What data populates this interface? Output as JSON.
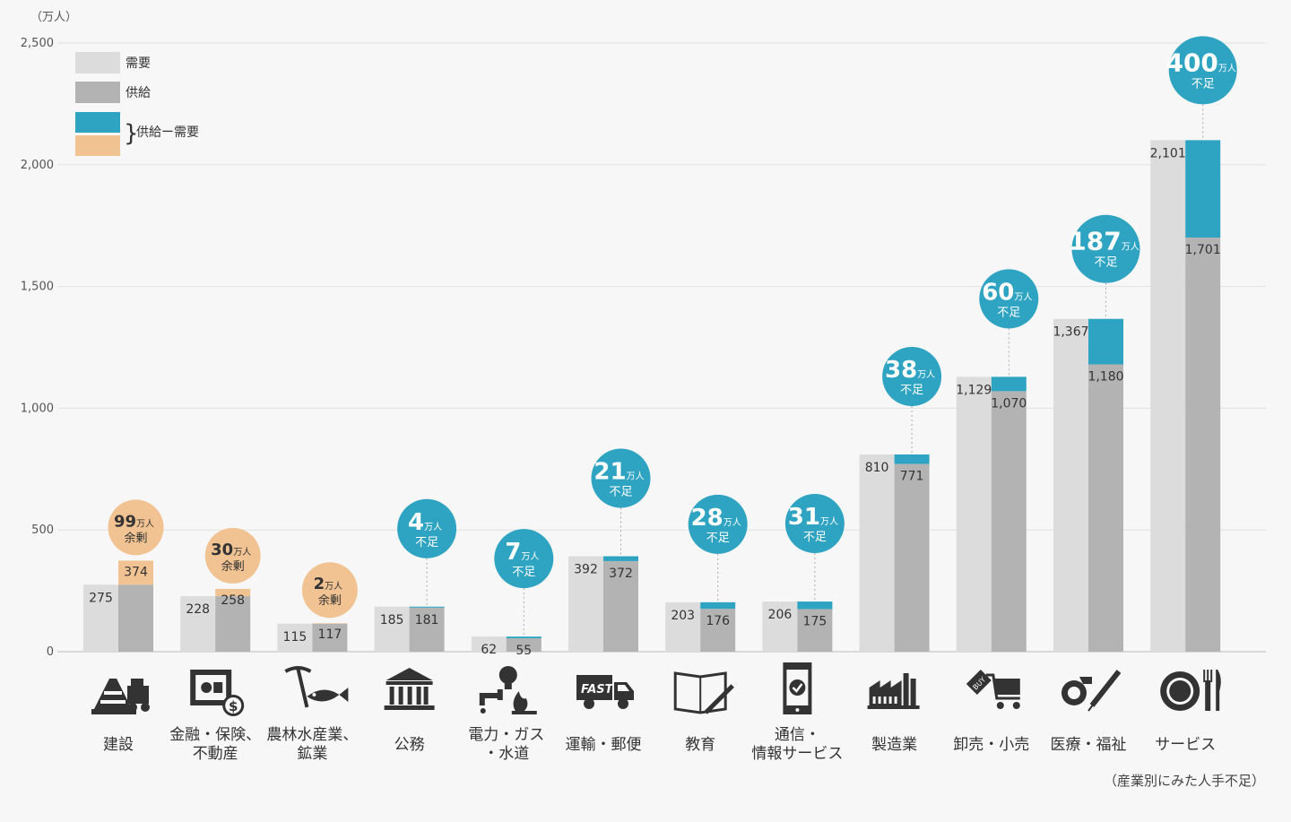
{
  "chart_data": {
    "type": "bar",
    "unit_label": "（万人）",
    "caption": "（産業別にみた人手不足）",
    "ylim": [
      0,
      2500
    ],
    "yticks": [
      0,
      500,
      1000,
      1500,
      2000,
      2500
    ],
    "ytick_labels": [
      "0",
      "500",
      "1,000",
      "1,500",
      "2,000",
      "2,500"
    ],
    "legend": {
      "demand": "需要",
      "supply": "供給",
      "diff": "供給ー需要"
    },
    "colors": {
      "demand": "#dcdcdc",
      "supply": "#b3b3b3",
      "shortage": "#2fa4c2",
      "surplus": "#f1c393"
    },
    "badge_unit": "万人",
    "badge_surplus": "余剰",
    "badge_shortage": "不足",
    "categories": [
      {
        "label": [
          "建設"
        ],
        "icon": "construction-icon",
        "demand": 275,
        "supply": 374,
        "demand_label": "275",
        "supply_label": "374",
        "diff": 99,
        "status": "surplus"
      },
      {
        "label": [
          "金融・保険、",
          "不動産"
        ],
        "icon": "safe-icon",
        "demand": 228,
        "supply": 258,
        "demand_label": "228",
        "supply_label": "258",
        "diff": 30,
        "status": "surplus"
      },
      {
        "label": [
          "農林水産業、",
          "鉱業"
        ],
        "icon": "pickaxe-fish-icon",
        "demand": 115,
        "supply": 117,
        "demand_label": "115",
        "supply_label": "117",
        "diff": 2,
        "status": "surplus"
      },
      {
        "label": [
          "公務"
        ],
        "icon": "government-building-icon",
        "demand": 185,
        "supply": 181,
        "demand_label": "185",
        "supply_label": "181",
        "diff": 4,
        "status": "shortage"
      },
      {
        "label": [
          "電力・ガス",
          "・水道"
        ],
        "icon": "utilities-icon",
        "demand": 62,
        "supply": 55,
        "demand_label": "62",
        "supply_label": "55",
        "diff": 7,
        "status": "shortage"
      },
      {
        "label": [
          "運輸・郵便"
        ],
        "icon": "truck-icon",
        "demand": 392,
        "supply": 372,
        "demand_label": "392",
        "supply_label": "372",
        "diff": 21,
        "status": "shortage"
      },
      {
        "label": [
          "教育"
        ],
        "icon": "book-icon",
        "demand": 203,
        "supply": 176,
        "demand_label": "203",
        "supply_label": "176",
        "diff": 28,
        "status": "shortage"
      },
      {
        "label": [
          "通信・",
          "情報サービス"
        ],
        "icon": "smartphone-icon",
        "demand": 206,
        "supply": 175,
        "demand_label": "206",
        "supply_label": "175",
        "diff": 31,
        "status": "shortage"
      },
      {
        "label": [
          "製造業"
        ],
        "icon": "factory-icon",
        "demand": 810,
        "supply": 771,
        "demand_label": "810",
        "supply_label": "771",
        "diff": 38,
        "status": "shortage"
      },
      {
        "label": [
          "卸売・小売"
        ],
        "icon": "shopping-cart-icon",
        "demand": 1129,
        "supply": 1070,
        "demand_label": "1,129",
        "supply_label": "1,070",
        "diff": 60,
        "status": "shortage"
      },
      {
        "label": [
          "医療・福祉"
        ],
        "icon": "medical-icon",
        "demand": 1367,
        "supply": 1180,
        "demand_label": "1,367",
        "supply_label": "1,180",
        "diff": 187,
        "status": "shortage"
      },
      {
        "label": [
          "サービス"
        ],
        "icon": "dining-icon",
        "demand": 2101,
        "supply": 1701,
        "demand_label": "2,101",
        "supply_label": "1,701",
        "diff": 400,
        "status": "shortage"
      }
    ]
  }
}
